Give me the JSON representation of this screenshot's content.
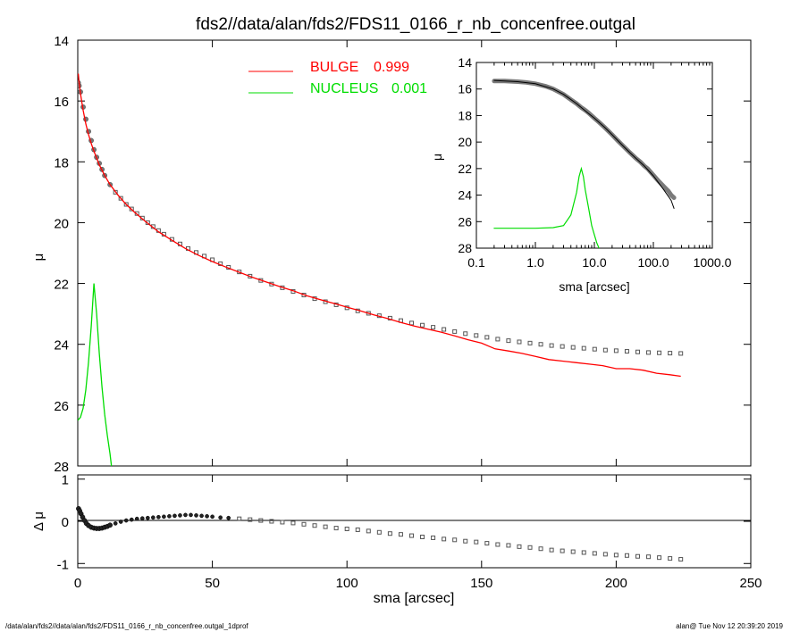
{
  "title": "fds2//data/alan/fds2/FDS11_0166_r_nb_concenfree.outgal",
  "footer": {
    "left": "/data/alan/fds2//data/alan/fds2/FDS11_0166_r_nb_concenfree.outgal_1dprof",
    "right": "alan@  Tue Nov 12 20:39:20 2019"
  },
  "colors": {
    "bulge": "#ff0000",
    "nucleus": "#00dd00",
    "data": "#555555",
    "axis": "#000000"
  },
  "chart_data": [
    {
      "name": "main-profile",
      "type": "line",
      "xlabel": "",
      "ylabel": "μ",
      "xlim": [
        0,
        250
      ],
      "ylim": [
        28,
        14
      ],
      "xticks": [
        0,
        50,
        100,
        150,
        200,
        250
      ],
      "yticks": [
        14,
        16,
        18,
        20,
        22,
        24,
        26,
        28
      ],
      "legend": [
        {
          "label": "BULGE",
          "value": "0.999",
          "color": "#ff0000"
        },
        {
          "label": "NUCLEUS",
          "value": "0.001",
          "color": "#00dd00"
        }
      ],
      "legend_position": "top-center",
      "series": [
        {
          "name": "data",
          "style": "squares",
          "x": [
            0.2,
            0.5,
            1,
            2,
            3,
            4,
            5,
            6,
            7,
            8,
            9,
            10,
            12,
            14,
            16,
            18,
            20,
            22,
            24,
            26,
            28,
            30,
            32,
            35,
            38,
            41,
            44,
            47,
            50,
            53,
            56,
            60,
            64,
            68,
            72,
            76,
            80,
            84,
            88,
            92,
            96,
            100,
            104,
            108,
            112,
            116,
            120,
            124,
            128,
            132,
            136,
            140,
            144,
            148,
            152,
            156,
            160,
            164,
            168,
            172,
            176,
            180,
            184,
            188,
            192,
            196,
            200,
            204,
            208,
            212,
            216,
            220,
            224
          ],
          "y": [
            15.4,
            15.5,
            15.7,
            16.2,
            16.6,
            17.0,
            17.3,
            17.6,
            17.85,
            18.05,
            18.25,
            18.45,
            18.75,
            19.0,
            19.2,
            19.4,
            19.55,
            19.7,
            19.85,
            20.0,
            20.13,
            20.26,
            20.38,
            20.55,
            20.7,
            20.85,
            20.98,
            21.1,
            21.22,
            21.35,
            21.47,
            21.62,
            21.76,
            21.9,
            22.02,
            22.14,
            22.26,
            22.38,
            22.5,
            22.6,
            22.7,
            22.8,
            22.9,
            22.98,
            23.06,
            23.14,
            23.22,
            23.3,
            23.37,
            23.44,
            23.51,
            23.58,
            23.65,
            23.71,
            23.77,
            23.83,
            23.88,
            23.92,
            23.96,
            24.0,
            24.04,
            24.07,
            24.1,
            24.13,
            24.16,
            24.19,
            24.21,
            24.23,
            24.25,
            24.27,
            24.28,
            24.29,
            24.3
          ]
        },
        {
          "name": "BULGE",
          "x": [
            0.2,
            0.5,
            1,
            2,
            3,
            4,
            5,
            6,
            8,
            10,
            12,
            15,
            18,
            21,
            25,
            30,
            35,
            40,
            45,
            50,
            55,
            60,
            65,
            70,
            75,
            80,
            85,
            90,
            95,
            100,
            105,
            110,
            115,
            120,
            125,
            130,
            135,
            140,
            145,
            150,
            155,
            160,
            165,
            170,
            175,
            180,
            185,
            190,
            195,
            200,
            205,
            210,
            215,
            220,
            224
          ],
          "y": [
            15.1,
            15.4,
            15.75,
            16.3,
            16.75,
            17.1,
            17.4,
            17.65,
            18.1,
            18.45,
            18.75,
            19.1,
            19.4,
            19.65,
            19.95,
            20.3,
            20.58,
            20.85,
            21.08,
            21.28,
            21.46,
            21.63,
            21.8,
            21.95,
            22.1,
            22.24,
            22.4,
            22.53,
            22.65,
            22.78,
            22.9,
            23.03,
            23.15,
            23.28,
            23.4,
            23.5,
            23.6,
            23.72,
            23.85,
            23.96,
            24.15,
            24.22,
            24.3,
            24.4,
            24.5,
            24.55,
            24.6,
            24.65,
            24.7,
            24.8,
            24.8,
            24.85,
            24.95,
            25.0,
            25.05
          ]
        },
        {
          "name": "NUCLEUS",
          "x": [
            0,
            1,
            2,
            3,
            4,
            5,
            6,
            7,
            8,
            9,
            10,
            11,
            12,
            12.5
          ],
          "y": [
            26.5,
            26.4,
            26.1,
            25.5,
            24.6,
            23.4,
            22.0,
            23.0,
            24.3,
            25.4,
            26.3,
            27.0,
            27.6,
            28.0
          ]
        }
      ]
    },
    {
      "name": "residual",
      "type": "scatter",
      "xlabel": "sma [arcsec]",
      "ylabel": "Δ μ",
      "xlim": [
        0,
        250
      ],
      "ylim": [
        -1.1,
        1.1
      ],
      "xticks": [
        0,
        50,
        100,
        150,
        200,
        250
      ],
      "yticks": [
        1,
        0,
        -1
      ],
      "series": [
        {
          "name": "residual",
          "x": [
            0.3,
            0.7,
            1.2,
            1.8,
            2.5,
            3.2,
            4,
            5,
            6,
            7,
            8,
            9,
            10,
            11,
            12,
            14,
            16,
            18,
            20,
            22,
            24,
            26,
            28,
            30,
            32,
            34,
            36,
            38,
            40,
            42,
            44,
            46,
            48,
            50,
            53,
            56,
            60,
            64,
            68,
            72,
            76,
            80,
            84,
            88,
            92,
            96,
            100,
            104,
            108,
            112,
            116,
            120,
            124,
            128,
            132,
            136,
            140,
            144,
            148,
            152,
            156,
            160,
            164,
            168,
            172,
            176,
            180,
            184,
            188,
            192,
            196,
            200,
            204,
            208,
            212,
            216,
            220,
            224
          ],
          "y": [
            0.3,
            0.25,
            0.18,
            0.1,
            0.02,
            -0.05,
            -0.1,
            -0.14,
            -0.16,
            -0.17,
            -0.17,
            -0.16,
            -0.14,
            -0.12,
            -0.09,
            -0.05,
            -0.01,
            0.02,
            0.04,
            0.06,
            0.07,
            0.08,
            0.09,
            0.1,
            0.11,
            0.12,
            0.13,
            0.14,
            0.15,
            0.15,
            0.14,
            0.13,
            0.12,
            0.11,
            0.09,
            0.08,
            0.06,
            0.04,
            0.02,
            0.0,
            -0.02,
            -0.04,
            -0.07,
            -0.1,
            -0.13,
            -0.16,
            -0.18,
            -0.2,
            -0.23,
            -0.26,
            -0.29,
            -0.31,
            -0.34,
            -0.37,
            -0.39,
            -0.42,
            -0.44,
            -0.47,
            -0.49,
            -0.52,
            -0.55,
            -0.57,
            -0.6,
            -0.62,
            -0.65,
            -0.68,
            -0.7,
            -0.72,
            -0.74,
            -0.76,
            -0.78,
            -0.8,
            -0.81,
            -0.83,
            -0.84,
            -0.86,
            -0.88,
            -0.9
          ]
        }
      ]
    },
    {
      "name": "inset-log",
      "type": "line",
      "xlabel": "sma [arcsec]",
      "ylabel": "μ",
      "xscale": "log",
      "xlim": [
        0.1,
        1000
      ],
      "ylim": [
        28,
        14
      ],
      "xticks": [
        0.1,
        1,
        10,
        100,
        1000
      ],
      "xticklabels": [
        "0.1",
        "1.0",
        "10.0",
        "100.0",
        "1000.0"
      ],
      "yticks": [
        14,
        16,
        18,
        20,
        22,
        24,
        26,
        28
      ],
      "series": [
        {
          "name": "data",
          "style": "thick-gray",
          "x": [
            0.2,
            0.3,
            0.5,
            0.7,
            1,
            1.5,
            2,
            3,
            4,
            5,
            6,
            7,
            8,
            10,
            12,
            15,
            20,
            25,
            30,
            40,
            50,
            60,
            70,
            80,
            100,
            120,
            150,
            180,
            200,
            224
          ],
          "y": [
            15.4,
            15.4,
            15.45,
            15.5,
            15.6,
            15.8,
            16.0,
            16.4,
            16.8,
            17.1,
            17.4,
            17.6,
            17.8,
            18.2,
            18.5,
            18.9,
            19.45,
            19.9,
            20.25,
            20.8,
            21.2,
            21.5,
            21.8,
            22.0,
            22.5,
            22.9,
            23.35,
            23.7,
            24.0,
            24.2
          ]
        },
        {
          "name": "BULGE",
          "style": "thin-black",
          "x": [
            0.2,
            0.5,
            1,
            2,
            3,
            5,
            8,
            10,
            15,
            20,
            30,
            40,
            50,
            70,
            100,
            150,
            200,
            224
          ],
          "y": [
            15.35,
            15.45,
            15.6,
            16.0,
            16.4,
            17.1,
            17.85,
            18.2,
            18.9,
            19.45,
            20.25,
            20.8,
            21.2,
            21.8,
            22.55,
            23.6,
            24.4,
            25.0
          ]
        },
        {
          "name": "NUCLEUS",
          "style": "green",
          "x": [
            0.2,
            0.5,
            1,
            2,
            3,
            4,
            5,
            5.5,
            6,
            6.5,
            7,
            8,
            9,
            10,
            11,
            12
          ],
          "y": [
            26.5,
            26.5,
            26.5,
            26.45,
            26.3,
            25.5,
            23.8,
            22.6,
            22.0,
            22.6,
            23.6,
            25.0,
            26.3,
            27.0,
            27.6,
            28.0
          ]
        }
      ]
    }
  ]
}
